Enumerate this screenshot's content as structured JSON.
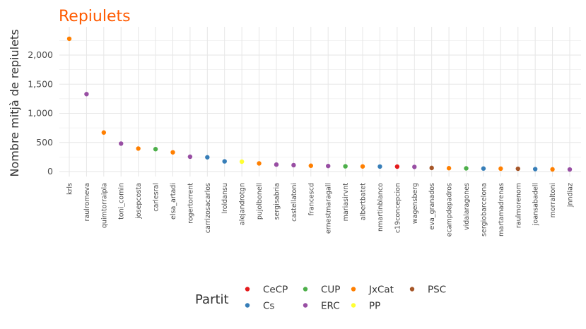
{
  "colors": {
    "title": "#FF5A00",
    "grid": "#e6e6e6",
    "text": "#4d4d4d",
    "axis_title": "#333333"
  },
  "chart_data": {
    "type": "scatter",
    "title": "Repiulets",
    "xlabel": "",
    "ylabel": "Nombre mitjà de repiulets",
    "ylim": [
      0,
      2400
    ],
    "yticks": [
      0,
      500,
      1000,
      1500,
      2000
    ],
    "ytick_labels": [
      "0",
      "500",
      "1,000",
      "1,500",
      "2,000"
    ],
    "grid": true,
    "legend": {
      "title": "Partit",
      "position": "bottom",
      "entries": [
        {
          "label": "CeCP",
          "color": "#E41A1C"
        },
        {
          "label": "Cs",
          "color": "#377EB8"
        },
        {
          "label": "CUP",
          "color": "#4DAF4A"
        },
        {
          "label": "ERC",
          "color": "#984EA3"
        },
        {
          "label": "JxCat",
          "color": "#FF7F00"
        },
        {
          "label": "PP",
          "color": "#FFFF33"
        },
        {
          "label": "PSC",
          "color": "#A65628"
        }
      ]
    },
    "points": [
      {
        "user": "krls",
        "party": "JxCat",
        "value": 2280
      },
      {
        "user": "raulromeva",
        "party": "ERC",
        "value": 1330
      },
      {
        "user": "quimtorraipla",
        "party": "JxCat",
        "value": 670
      },
      {
        "user": "toni_comin",
        "party": "ERC",
        "value": 480
      },
      {
        "user": "josepcosta",
        "party": "JxCat",
        "value": 395
      },
      {
        "user": "carlesral",
        "party": "CUP",
        "value": 385
      },
      {
        "user": "elsa_artadi",
        "party": "JxCat",
        "value": 330
      },
      {
        "user": "rogertorrent",
        "party": "ERC",
        "value": 255
      },
      {
        "user": "carrizosacarlos",
        "party": "Cs",
        "value": 245
      },
      {
        "user": "lroldansu",
        "party": "Cs",
        "value": 175
      },
      {
        "user": "alejandrotgn",
        "party": "PP",
        "value": 170
      },
      {
        "user": "pujolbonell",
        "party": "JxCat",
        "value": 140
      },
      {
        "user": "sergisabria",
        "party": "ERC",
        "value": 120
      },
      {
        "user": "castellatoni",
        "party": "ERC",
        "value": 110
      },
      {
        "user": "francescd",
        "party": "JxCat",
        "value": 100
      },
      {
        "user": "ernestmaragall",
        "party": "ERC",
        "value": 95
      },
      {
        "user": "mariasirvnt",
        "party": "CUP",
        "value": 90
      },
      {
        "user": "albertbatet",
        "party": "JxCat",
        "value": 88
      },
      {
        "user": "nmartinblanco",
        "party": "Cs",
        "value": 86
      },
      {
        "user": "c19concepcion",
        "party": "CeCP",
        "value": 85
      },
      {
        "user": "wagensberg",
        "party": "ERC",
        "value": 80
      },
      {
        "user": "eva_granados",
        "party": "PSC",
        "value": 62
      },
      {
        "user": "ecampdepadros",
        "party": "JxCat",
        "value": 58
      },
      {
        "user": "vidalaragones",
        "party": "CUP",
        "value": 55
      },
      {
        "user": "sergiobarcelona",
        "party": "Cs",
        "value": 52
      },
      {
        "user": "martamadrenas",
        "party": "JxCat",
        "value": 50
      },
      {
        "user": "raulmorenom",
        "party": "PSC",
        "value": 48
      },
      {
        "user": "joansabadell",
        "party": "Cs",
        "value": 42
      },
      {
        "user": "morraltoni",
        "party": "JxCat",
        "value": 38
      },
      {
        "user": "jnndiaz",
        "party": "ERC",
        "value": 36
      }
    ]
  }
}
